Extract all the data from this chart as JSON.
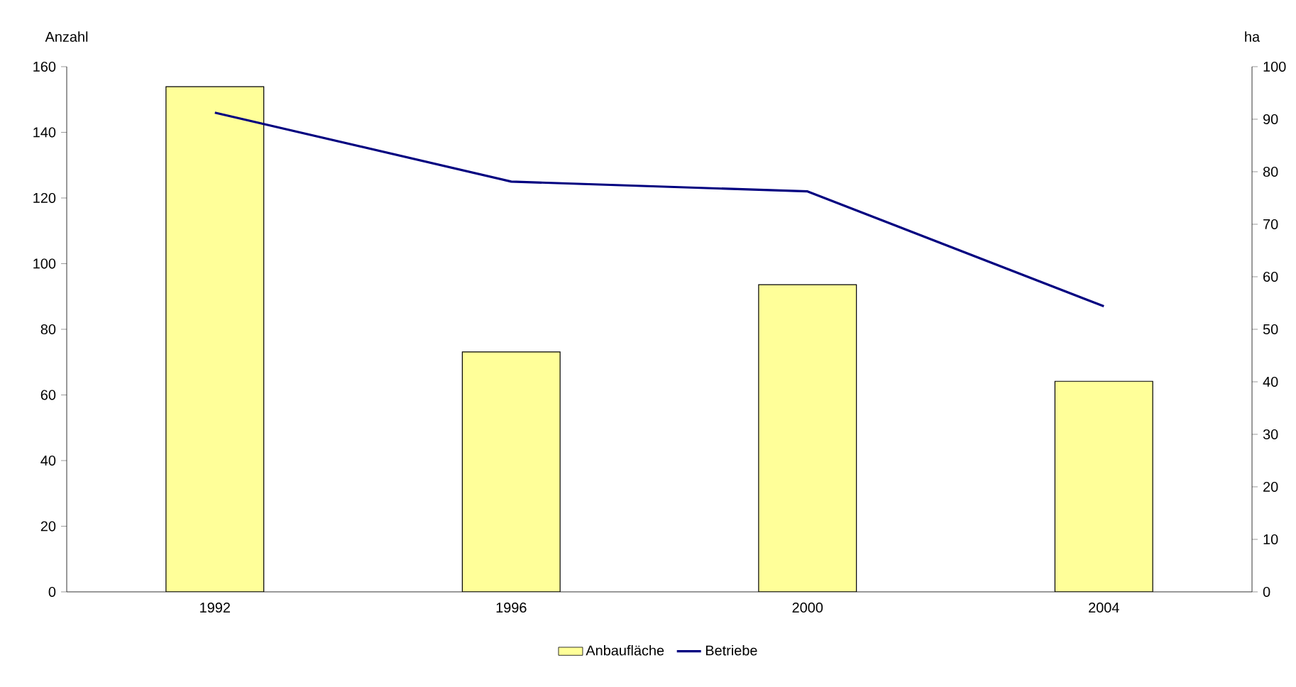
{
  "chart_data": {
    "type": "bar",
    "ylabel": "Anzahl",
    "y2label": "ha",
    "categories": [
      "1992",
      "1996",
      "2000",
      "2004"
    ],
    "series": [
      {
        "name": "Anbaufläche",
        "axis": "y2",
        "color": "#ffff99",
        "values": [
          96.2,
          45.7,
          58.5,
          40.1
        ]
      },
      {
        "name": "Betriebe",
        "type": "line",
        "color": "#000080",
        "values": [
          146,
          125,
          122,
          87
        ]
      }
    ],
    "ylim": [
      0,
      160
    ],
    "yticks": [
      0,
      20,
      40,
      60,
      80,
      100,
      120,
      140,
      160
    ],
    "y2lim": [
      0,
      100
    ],
    "y2ticks": [
      0,
      10,
      20,
      30,
      40,
      50,
      60,
      70,
      80,
      90,
      100
    ],
    "legend": "bottom",
    "grid": false,
    "marker": "none",
    "line_style": "solid"
  }
}
